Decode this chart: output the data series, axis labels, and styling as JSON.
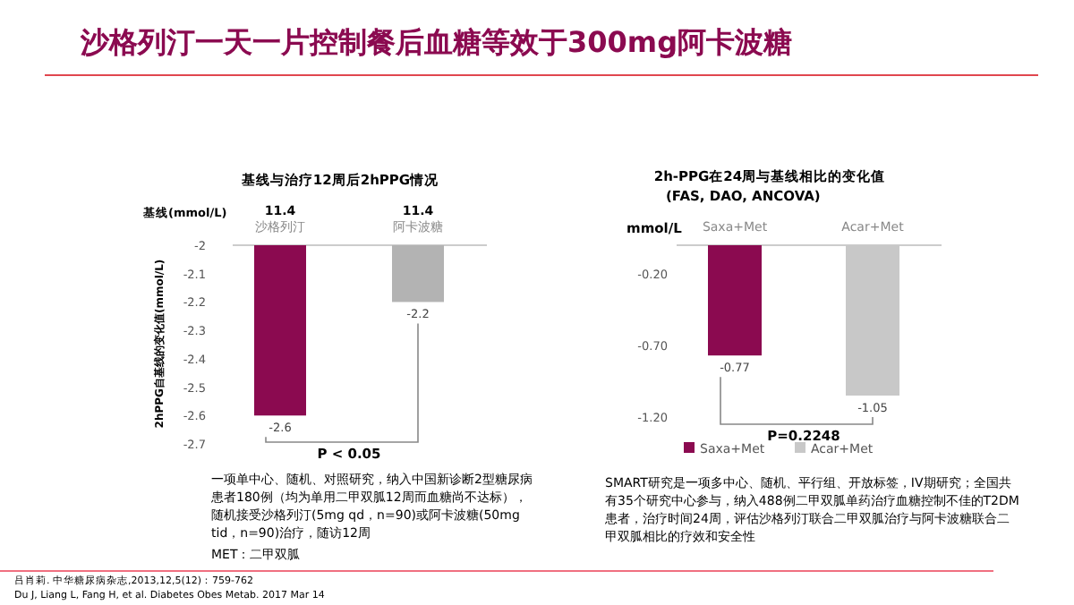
{
  "chart_data": [
    {
      "type": "bar",
      "title": "基线与治疗12周后2hPPG情况",
      "ylabel": "2hPPG自基线的变化值(mmol/L)",
      "categories": [
        "沙格列汀",
        "阿卡波糖"
      ],
      "values": [
        -2.6,
        -2.2
      ],
      "colors": [
        "#8b0a50",
        "#b3b3b3"
      ],
      "ylim": [
        -2.7,
        -2
      ],
      "yticks": [
        -2,
        -2.1,
        -2.2,
        -2.3,
        -2.4,
        -2.5,
        -2.6,
        -2.7
      ],
      "data_labels": true,
      "annotations": [
        "基线(mmol/L)",
        "11.4",
        "11.4",
        "P < 0.05",
        "一项单中心、随机、对照研究，纳入中国新诊断2型糖尿病患者180例（均为单用二甲双胍12周而血糖尚不达标），随机接受沙格列汀(5mg qd，n=90)或阿卡波糖(50mg tid，n=90)治疗，随访12周",
        "MET：二甲双胍"
      ]
    },
    {
      "type": "bar",
      "title": "2h-PPG在24周与基线相比的变化值",
      "subtitle": "(FAS, DAO, ANCOVA)",
      "ylabel": "mmol/L",
      "categories": [
        "Saxa+Met",
        "Acar+Met"
      ],
      "series": [
        {
          "name": "Saxa+Met",
          "color": "#8b0a50",
          "values": [
            -0.77,
            null
          ]
        },
        {
          "name": "Acar+Met",
          "color": "#c8c8c8",
          "values": [
            null,
            -1.05
          ]
        }
      ],
      "ylim": [
        -1.2,
        0
      ],
      "yticks": [
        {
          "value": -0.2,
          "label": "-0.20"
        },
        {
          "value": -0.7,
          "label": "-0.70"
        },
        {
          "value": -1.2,
          "label": "-1.20"
        }
      ],
      "data_labels": true,
      "legend": "bottom",
      "annotations": [
        "P=0.2248",
        "SMART研究是一项多中心、随机、平行组、开放标签，IV期研究；全国共有35个研究中心参与，纳入488例二甲双胍单药治疗血糖控制不佳的T2DM患者，治疗时间24周，评估沙格列汀联合二甲双胍治疗与阿卡波糖联合二甲双胍相比的疗效和安全性"
      ]
    },
    {
      "type": "other",
      "title": "沙格列汀一天一片控制餐后血糖等效于300mg阿卡波糖",
      "annotations": [
        "吕肖莉. 中华糖尿病杂志,2013,12,5(12)：759-762",
        "Du J, Liang L, Fang H, et al. Diabetes Obes Metab. 2017 Mar 14"
      ]
    }
  ]
}
